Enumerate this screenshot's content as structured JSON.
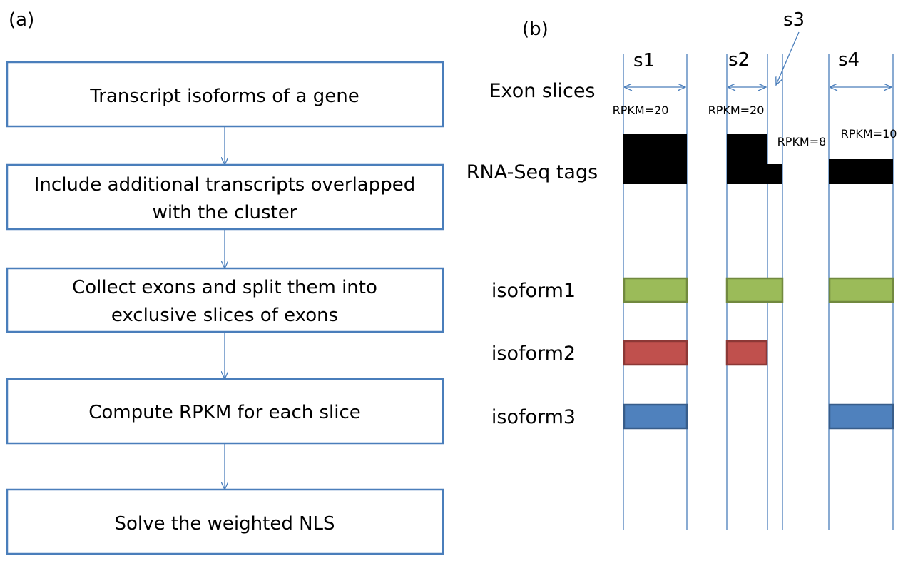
{
  "panel_a": {
    "label": "(a)",
    "steps": [
      [
        "Transcript isoforms of a gene"
      ],
      [
        "Include additional transcripts overlapped",
        "with the cluster"
      ],
      [
        "Collect exons and split them into",
        "exclusive slices of exons"
      ],
      [
        "Compute RPKM for each slice"
      ],
      [
        "Solve the weighted NLS"
      ]
    ]
  },
  "panel_b": {
    "label": "(b)",
    "row_labels": {
      "exon_slices": "Exon slices",
      "rna_seq": "RNA-Seq tags",
      "isoform1": "isoform1",
      "isoform2": "isoform2",
      "isoform3": "isoform3"
    },
    "slices": [
      {
        "name": "s1",
        "rpkm_label": "RPKM=20",
        "rpkm": 20
      },
      {
        "name": "s2",
        "rpkm_label": "RPKM=20",
        "rpkm": 20
      },
      {
        "name": "s3",
        "rpkm_label": "RPKM=8",
        "rpkm": 8
      },
      {
        "name": "s4",
        "rpkm_label": "RPKM=10",
        "rpkm": 10
      }
    ],
    "isoforms": [
      {
        "name": "isoform1",
        "color": "#9BBB59",
        "stroke": "#71893F",
        "slices": [
          "s1",
          "s2",
          "s3",
          "s4"
        ]
      },
      {
        "name": "isoform2",
        "color": "#C0504D",
        "stroke": "#8C3836",
        "slices": [
          "s1",
          "s2"
        ]
      },
      {
        "name": "isoform3",
        "color": "#4F81BD",
        "stroke": "#385D8A",
        "slices": [
          "s1",
          "s4"
        ]
      }
    ],
    "colors": {
      "line": "#4A7EBB",
      "tags": "#000000"
    }
  }
}
